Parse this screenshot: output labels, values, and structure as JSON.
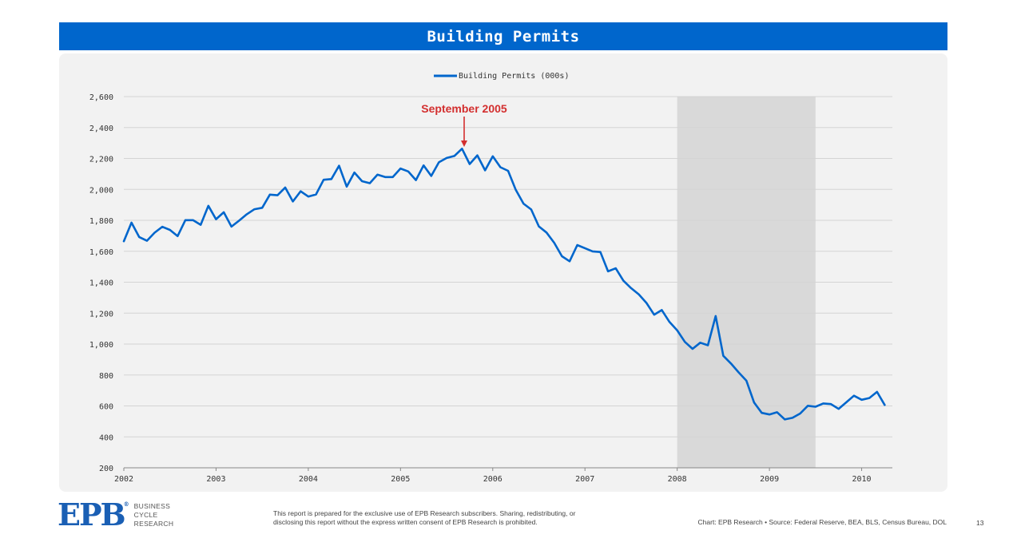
{
  "header": {
    "title": "Building Permits"
  },
  "chart_data": {
    "type": "line",
    "title": "Building Permits",
    "legend": {
      "label": "Building Permits (000s)",
      "position": "top-center"
    },
    "xlabel": "",
    "ylabel": "",
    "ylim": [
      200,
      2600
    ],
    "yticks": [
      200,
      400,
      600,
      800,
      1000,
      1200,
      1400,
      1600,
      1800,
      2000,
      2200,
      2400,
      2600
    ],
    "ytick_labels": [
      "200",
      "400",
      "600",
      "800",
      "1,000",
      "1,200",
      "1,400",
      "1,600",
      "1,800",
      "2,000",
      "2,200",
      "2,400",
      "2,600"
    ],
    "xlim": [
      2002.0,
      2010.333
    ],
    "xticks": [
      2002,
      2003,
      2004,
      2005,
      2006,
      2007,
      2008,
      2009,
      2010
    ],
    "xtick_labels": [
      "2002",
      "2003",
      "2004",
      "2005",
      "2006",
      "2007",
      "2008",
      "2009",
      "2010"
    ],
    "grid": true,
    "recession": {
      "start": 2008.0,
      "end": 2009.5,
      "color": "#d9d9d9"
    },
    "annotation": {
      "text": "September 2005",
      "x": 2005.667,
      "y": 2263,
      "color": "#d32f2f"
    },
    "series": [
      {
        "name": "Building Permits (000s)",
        "color": "#0066cc",
        "start_year": 2002,
        "frequency": "monthly",
        "values": [
          1665,
          1785,
          1692,
          1668,
          1720,
          1758,
          1738,
          1698,
          1801,
          1801,
          1771,
          1894,
          1807,
          1852,
          1759,
          1798,
          1839,
          1872,
          1881,
          1966,
          1962,
          2012,
          1922,
          1988,
          1954,
          1967,
          2062,
          2067,
          2153,
          2018,
          2109,
          2053,
          2040,
          2095,
          2080,
          2080,
          2135,
          2116,
          2060,
          2155,
          2087,
          2175,
          2203,
          2216,
          2263,
          2164,
          2220,
          2123,
          2214,
          2143,
          2120,
          1997,
          1908,
          1870,
          1761,
          1721,
          1655,
          1568,
          1535,
          1640,
          1620,
          1599,
          1595,
          1470,
          1490,
          1410,
          1362,
          1321,
          1266,
          1190,
          1220,
          1143,
          1088,
          1014,
          969,
          1009,
          992,
          1181,
          924,
          874,
          817,
          763,
          622,
          555,
          545,
          559,
          513,
          523,
          551,
          601,
          595,
          616,
          612,
          581,
          623,
          666,
          640,
          651,
          691,
          606
        ]
      }
    ]
  },
  "footer": {
    "logo": {
      "mark": "EPB",
      "reg": "®",
      "line1": "BUSINESS",
      "line2": "CYCLE",
      "line3": "RESEARCH"
    },
    "disclaimer_line1": "This report is prepared for the exclusive use of EPB Research subscribers. Sharing, redistributing, or",
    "disclaimer_line2": "disclosing this report without the express written consent of EPB Research is prohibited.",
    "source": "Chart: EPB Research  •  Source: Federal Reserve, BEA, BLS, Census Bureau, DOL",
    "page_number": "13"
  }
}
